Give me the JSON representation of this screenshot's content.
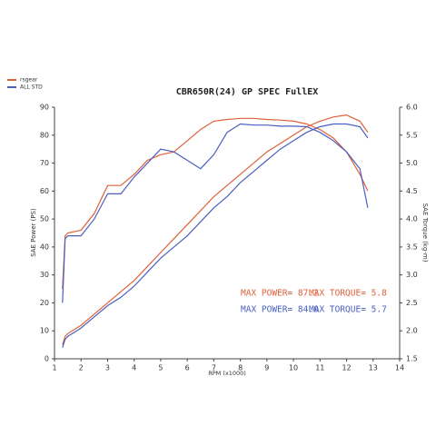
{
  "chart_data": {
    "type": "line",
    "title": "CBR650R(24) GP SPEC FullEX",
    "x_label": "RPM (x1000)",
    "y_label": "SAE Power (PS)",
    "y2_label": "SAE Torque (kg-m)",
    "x": [
      1.3,
      1.4,
      1.5,
      2,
      2.5,
      3,
      3.5,
      4,
      4.5,
      5,
      5.5,
      6,
      6.5,
      7,
      7.5,
      8,
      8.5,
      9,
      9.5,
      10,
      10.5,
      11,
      11.5,
      12,
      12.5,
      12.8
    ],
    "series": [
      {
        "name": "rsgear",
        "color": "#e0603a",
        "values": [
          5,
          8,
          9,
          12,
          16,
          20,
          24,
          28,
          33,
          38,
          43,
          48,
          53,
          58,
          62,
          66,
          70,
          74,
          77,
          80,
          83,
          85,
          86.5,
          87.2,
          85,
          81
        ],
        "torque_values": [
          2.75,
          3.7,
          3.75,
          3.8,
          4.1,
          4.6,
          4.6,
          4.8,
          5.05,
          5.15,
          5.2,
          5.4,
          5.6,
          5.75,
          5.78,
          5.8,
          5.8,
          5.78,
          5.77,
          5.75,
          5.7,
          5.6,
          5.45,
          5.2,
          4.8,
          4.5
        ],
        "max_power_label": "MAX POWER= 87.2",
        "max_torque_label": "MAX TORQUE= 5.8"
      },
      {
        "name": "ALL STD",
        "color": "#4a5fc0",
        "values": [
          4,
          7,
          8,
          11,
          15,
          19,
          22,
          26,
          31,
          36,
          40,
          44,
          49,
          54,
          58,
          63,
          67,
          71,
          75,
          78,
          81,
          83,
          84,
          84,
          83,
          79
        ],
        "torque_values": [
          2.5,
          3.65,
          3.7,
          3.7,
          4.0,
          4.45,
          4.45,
          4.75,
          5.0,
          5.25,
          5.2,
          5.05,
          4.9,
          5.15,
          5.55,
          5.7,
          5.68,
          5.68,
          5.66,
          5.66,
          5.65,
          5.55,
          5.4,
          5.2,
          4.9,
          4.2
        ],
        "max_power_label": "MAX POWER= 84.0",
        "max_torque_label": "MAX TORQUE= 5.7"
      }
    ],
    "xlim": [
      1,
      14
    ],
    "xticks": [
      1,
      2,
      3,
      4,
      5,
      6,
      7,
      8,
      9,
      10,
      11,
      12,
      13,
      14
    ],
    "ylim": [
      0,
      90
    ],
    "yticks": [
      0,
      10,
      20,
      30,
      40,
      50,
      60,
      70,
      80,
      90
    ],
    "y2lim": [
      1.5,
      6.0
    ],
    "y2ticks": [
      1.5,
      {
        "value": 2.0,
        "label": "2.0"
      },
      2.5,
      {
        "value": 3.0,
        "label": "3.0"
      },
      3.5,
      {
        "value": 4.0,
        "label": "4.0"
      },
      4.5,
      {
        "value": 5.0,
        "label": "5.0"
      },
      5.5,
      {
        "value": 6.0,
        "label": "6.0"
      }
    ],
    "grid": false,
    "legend": "top-left"
  }
}
